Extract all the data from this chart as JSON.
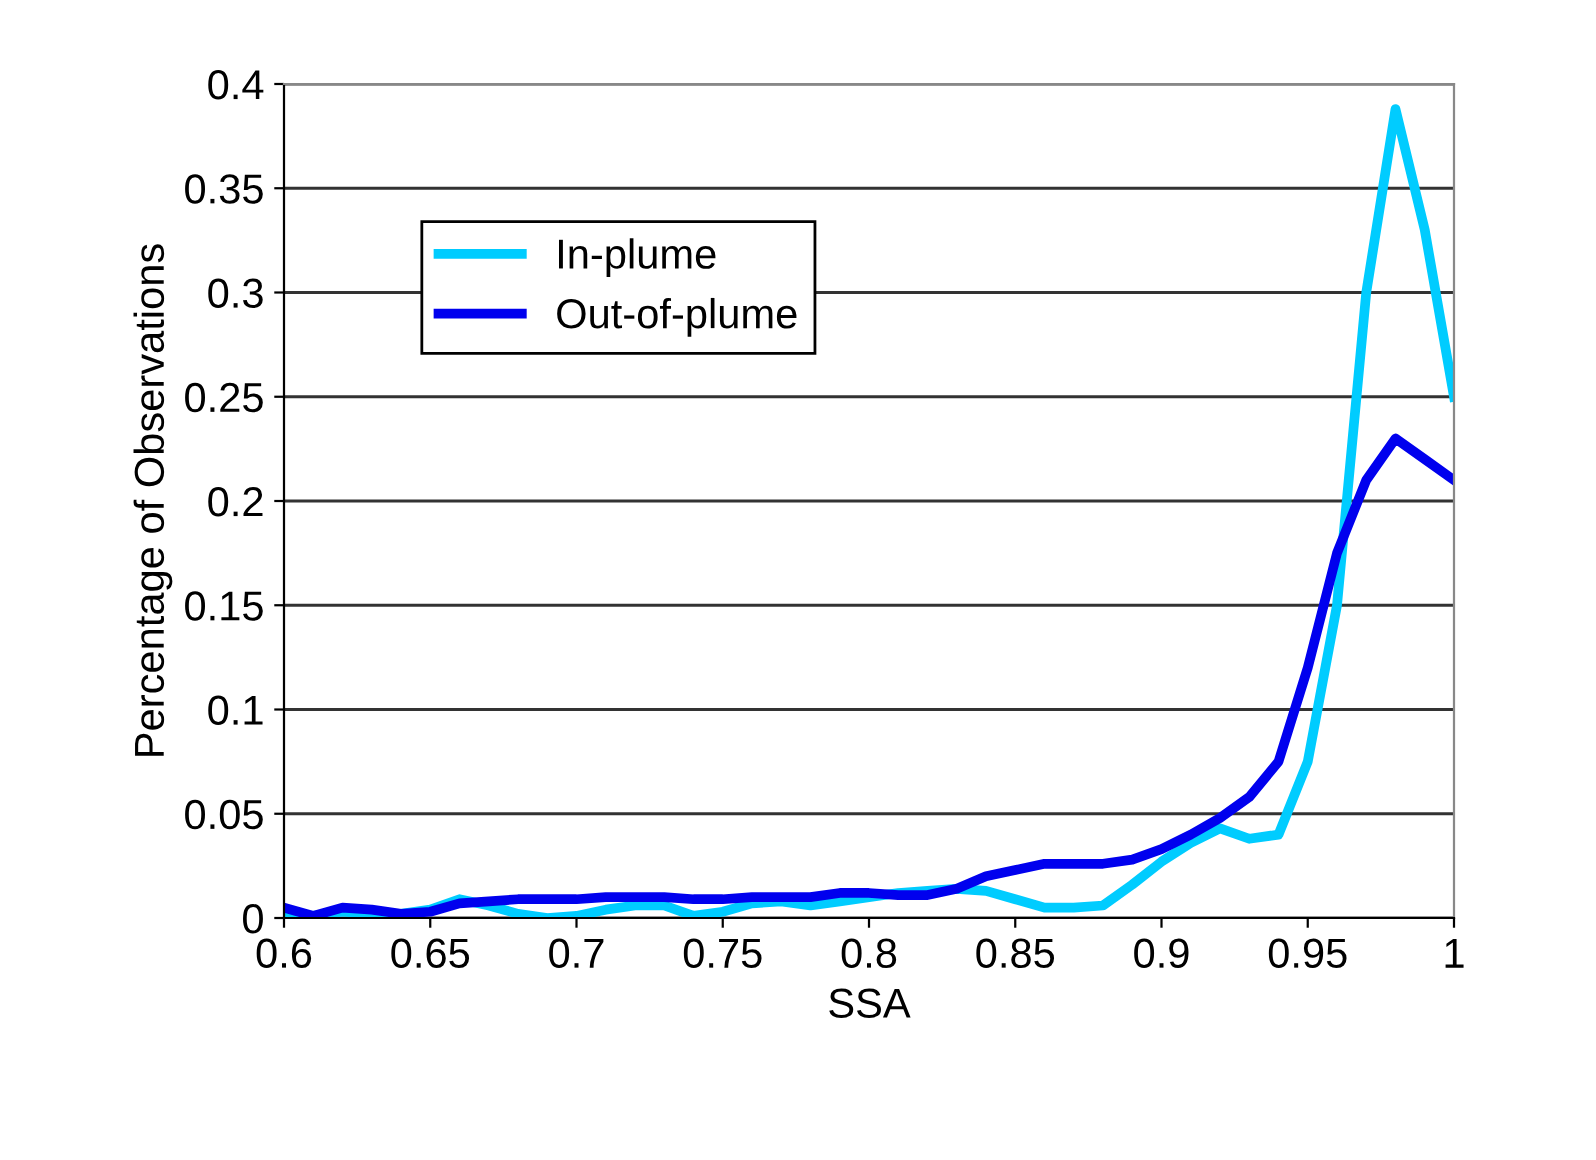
{
  "chart_data": {
    "type": "line",
    "xlabel": "SSA",
    "ylabel": "Percentage of Observations",
    "x": [
      0.6,
      0.61,
      0.62,
      0.63,
      0.64,
      0.65,
      0.66,
      0.67,
      0.68,
      0.69,
      0.7,
      0.71,
      0.72,
      0.73,
      0.74,
      0.75,
      0.76,
      0.77,
      0.78,
      0.79,
      0.8,
      0.81,
      0.82,
      0.83,
      0.84,
      0.85,
      0.86,
      0.87,
      0.88,
      0.89,
      0.9,
      0.91,
      0.92,
      0.93,
      0.94,
      0.95,
      0.96,
      0.97,
      0.98,
      0.99,
      1.0
    ],
    "series": [
      {
        "name": "In-plume",
        "color": "#00ccff",
        "values": [
          0.002,
          0.001,
          0.003,
          0.002,
          0.002,
          0.004,
          0.009,
          0.006,
          0.002,
          0.0,
          0.001,
          0.004,
          0.006,
          0.006,
          0.001,
          0.003,
          0.007,
          0.008,
          0.006,
          0.008,
          0.01,
          0.012,
          0.013,
          0.014,
          0.013,
          0.009,
          0.005,
          0.005,
          0.006,
          0.016,
          0.027,
          0.036,
          0.043,
          0.038,
          0.04,
          0.075,
          0.15,
          0.3,
          0.388,
          0.33,
          0.25
        ]
      },
      {
        "name": "Out-of-plume",
        "color": "#0000ee",
        "values": [
          0.005,
          0.001,
          0.005,
          0.004,
          0.002,
          0.003,
          0.007,
          0.008,
          0.009,
          0.009,
          0.009,
          0.01,
          0.01,
          0.01,
          0.009,
          0.009,
          0.01,
          0.01,
          0.01,
          0.012,
          0.012,
          0.011,
          0.011,
          0.014,
          0.02,
          0.023,
          0.026,
          0.026,
          0.026,
          0.028,
          0.033,
          0.04,
          0.048,
          0.058,
          0.075,
          0.12,
          0.175,
          0.21,
          0.23,
          0.22,
          0.21
        ]
      }
    ],
    "xlim": [
      0.6,
      1
    ],
    "xticks": [
      0.6,
      0.65,
      0.7,
      0.75,
      0.8,
      0.85,
      0.9,
      0.95,
      1
    ],
    "ylim": [
      0,
      0.4
    ],
    "yticks": [
      0,
      0.05,
      0.1,
      0.15,
      0.2,
      0.25,
      0.3,
      0.35,
      0.4
    ],
    "grid": "y",
    "legend": "top left",
    "marker": "none",
    "line_style": "solid"
  }
}
